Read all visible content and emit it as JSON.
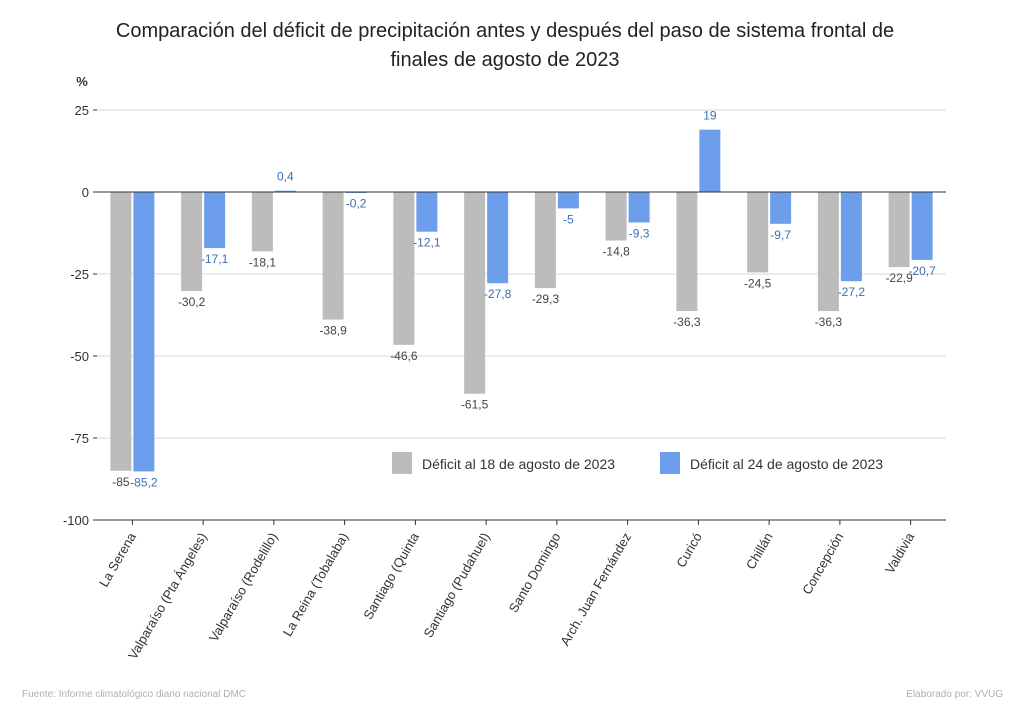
{
  "chart_data": {
    "type": "bar",
    "title_lines": [
      "Comparación del déficit de precipitación antes y después del paso de sistema frontal de",
      "finales de agosto de 2023"
    ],
    "ylabel": "%",
    "ylim": [
      -100,
      25
    ],
    "yticks": [
      25,
      0,
      -25,
      -50,
      -75,
      -100
    ],
    "ytick_labels": [
      "25",
      "0",
      "-25",
      "-50",
      "-75",
      "-100"
    ],
    "grid": true,
    "legend_position": "bottom-right inside plot",
    "categories": [
      "La Serena",
      "Valparaíso (Pta Ángeles)",
      "Valparaíso (Rodelillo)",
      "La Reina (Tobalaba)",
      "Santiago (Quinta",
      "Santiago (Pudahuel)",
      "Santo Domingo",
      "Arch. Juan Fernández",
      "Curicó",
      "Chillán",
      "Concepción",
      "Valdivia"
    ],
    "series": [
      {
        "name": "Déficit al 18 de agosto de 2023",
        "color": "#bcbcbc",
        "values": [
          -85,
          -30.2,
          -18.1,
          -38.9,
          -46.6,
          -61.5,
          -29.3,
          -14.8,
          -36.3,
          -24.5,
          -36.3,
          -22.9
        ],
        "labels": [
          "-85",
          "-30,2",
          "-18,1",
          "-38,9",
          "-46,6",
          "-61,5",
          "-29,3",
          "-14,8",
          "-36,3",
          "-24,5",
          "-36,3",
          "-22,9"
        ]
      },
      {
        "name": "Déficit al 24 de agosto de 2023",
        "color": "#6d9eeb",
        "values": [
          -85.2,
          -17.1,
          0.4,
          -0.2,
          -12.1,
          -27.8,
          -5,
          -9.3,
          19,
          -9.7,
          -27.2,
          -20.7
        ],
        "labels": [
          "-85,2",
          "-17,1",
          "0,4",
          "-0,2",
          "-12,1",
          "-27,8",
          "-5",
          "-9,3",
          "19",
          "-9,7",
          "-27,2",
          "-20,7"
        ]
      }
    ]
  },
  "footer": {
    "source": "Fuente: Informe climatológico diario nacional DMC",
    "author": "Elaborado por: VVUG"
  },
  "colors": {
    "series1": "#bcbcbc",
    "series2": "#6d9eeb",
    "series1_label": "#444444",
    "series2_label": "#3a6fb5",
    "grid": "#d8d8d8",
    "axis": "#333333"
  }
}
